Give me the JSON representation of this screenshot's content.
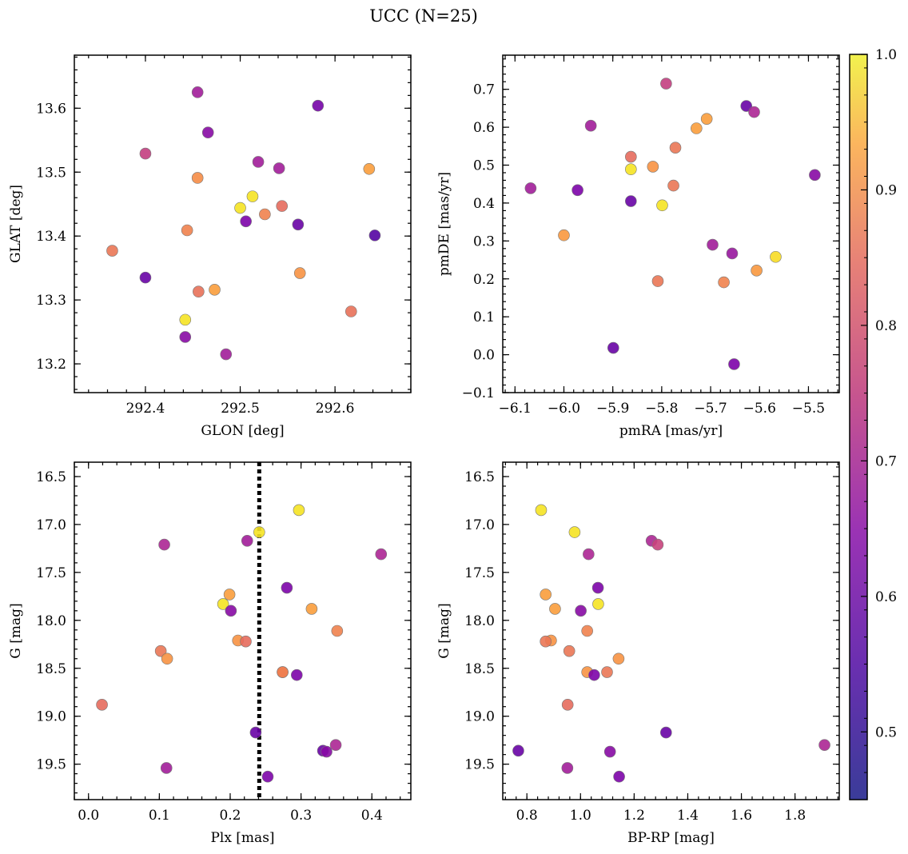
{
  "figure": {
    "title": "UCC (N=25)"
  },
  "chart_data": [
    {
      "type": "scatter",
      "xlabel": "GLON [deg]",
      "ylabel": "GLAT [deg]",
      "xlim": [
        292.325,
        292.68
      ],
      "ylim": [
        13.155,
        13.683
      ],
      "xticks": [
        292.4,
        292.5,
        292.6
      ],
      "xticklabels": [
        "292.4",
        "292.5",
        "292.6"
      ],
      "yticks": [
        13.2,
        13.3,
        13.4,
        13.5,
        13.6
      ],
      "yticklabels": [
        "13.2",
        "13.3",
        "13.4",
        "13.5",
        "13.6"
      ],
      "grid": false,
      "points": [
        {
          "x": 292.455,
          "y": 13.625,
          "c": 0.6
        },
        {
          "x": 292.582,
          "y": 13.604,
          "c": 0.52
        },
        {
          "x": 292.466,
          "y": 13.562,
          "c": 0.55
        },
        {
          "x": 292.4,
          "y": 13.529,
          "c": 0.67
        },
        {
          "x": 292.519,
          "y": 13.516,
          "c": 0.6
        },
        {
          "x": 292.541,
          "y": 13.506,
          "c": 0.6
        },
        {
          "x": 292.636,
          "y": 13.505,
          "c": 0.86
        },
        {
          "x": 292.455,
          "y": 13.491,
          "c": 0.83
        },
        {
          "x": 292.513,
          "y": 13.462,
          "c": 0.97
        },
        {
          "x": 292.5,
          "y": 13.444,
          "c": 0.97
        },
        {
          "x": 292.544,
          "y": 13.447,
          "c": 0.77
        },
        {
          "x": 292.526,
          "y": 13.434,
          "c": 0.81
        },
        {
          "x": 292.506,
          "y": 13.423,
          "c": 0.53
        },
        {
          "x": 292.561,
          "y": 13.418,
          "c": 0.5
        },
        {
          "x": 292.444,
          "y": 13.409,
          "c": 0.81
        },
        {
          "x": 292.642,
          "y": 13.401,
          "c": 0.47
        },
        {
          "x": 292.365,
          "y": 13.377,
          "c": 0.79
        },
        {
          "x": 292.4,
          "y": 13.335,
          "c": 0.5
        },
        {
          "x": 292.563,
          "y": 13.342,
          "c": 0.84
        },
        {
          "x": 292.473,
          "y": 13.316,
          "c": 0.86
        },
        {
          "x": 292.456,
          "y": 13.313,
          "c": 0.78
        },
        {
          "x": 292.617,
          "y": 13.282,
          "c": 0.78
        },
        {
          "x": 292.442,
          "y": 13.269,
          "c": 0.97
        },
        {
          "x": 292.442,
          "y": 13.242,
          "c": 0.55
        },
        {
          "x": 292.485,
          "y": 13.215,
          "c": 0.6
        }
      ]
    },
    {
      "type": "scatter",
      "xlabel": "pmRA [mas/yr]",
      "ylabel": "pmDE [mas/yr]",
      "xlim": [
        -6.125,
        -5.437
      ],
      "ylim": [
        -0.1,
        0.79
      ],
      "xticks": [
        -6.1,
        -6.0,
        -5.9,
        -5.8,
        -5.7,
        -5.6,
        -5.5
      ],
      "xticklabels": [
        "−6.1",
        "−6.0",
        "−5.9",
        "−5.8",
        "−5.7",
        "−5.6",
        "−5.5"
      ],
      "yticks": [
        -0.1,
        0.0,
        0.1,
        0.2,
        0.3,
        0.4,
        0.5,
        0.6,
        0.7
      ],
      "yticklabels": [
        "−0.1",
        "0.0",
        "0.1",
        "0.2",
        "0.3",
        "0.4",
        "0.5",
        "0.6",
        "0.7"
      ],
      "grid": false,
      "points": [
        {
          "x": -5.791,
          "y": 0.715,
          "c": 0.67
        },
        {
          "x": -5.627,
          "y": 0.656,
          "c": 0.5
        },
        {
          "x": -5.611,
          "y": 0.64,
          "c": 0.62
        },
        {
          "x": -5.945,
          "y": 0.604,
          "c": 0.6
        },
        {
          "x": -5.708,
          "y": 0.622,
          "c": 0.86
        },
        {
          "x": -5.729,
          "y": 0.597,
          "c": 0.86
        },
        {
          "x": -5.772,
          "y": 0.546,
          "c": 0.79
        },
        {
          "x": -5.863,
          "y": 0.522,
          "c": 0.77
        },
        {
          "x": -5.818,
          "y": 0.496,
          "c": 0.84
        },
        {
          "x": -5.863,
          "y": 0.489,
          "c": 0.97
        },
        {
          "x": -5.487,
          "y": 0.474,
          "c": 0.55
        },
        {
          "x": -5.776,
          "y": 0.446,
          "c": 0.79
        },
        {
          "x": -6.068,
          "y": 0.439,
          "c": 0.6
        },
        {
          "x": -5.972,
          "y": 0.434,
          "c": 0.53
        },
        {
          "x": -5.863,
          "y": 0.405,
          "c": 0.5
        },
        {
          "x": -5.799,
          "y": 0.394,
          "c": 0.97
        },
        {
          "x": -6.0,
          "y": 0.315,
          "c": 0.85
        },
        {
          "x": -5.696,
          "y": 0.29,
          "c": 0.6
        },
        {
          "x": -5.656,
          "y": 0.267,
          "c": 0.58
        },
        {
          "x": -5.567,
          "y": 0.258,
          "c": 0.96
        },
        {
          "x": -5.606,
          "y": 0.222,
          "c": 0.85
        },
        {
          "x": -5.808,
          "y": 0.194,
          "c": 0.79
        },
        {
          "x": -5.673,
          "y": 0.191,
          "c": 0.81
        },
        {
          "x": -5.899,
          "y": 0.018,
          "c": 0.5
        },
        {
          "x": -5.652,
          "y": -0.025,
          "c": 0.53
        }
      ]
    },
    {
      "type": "scatter",
      "xlabel": "Plx [mas]",
      "ylabel": "G [mag]",
      "xlim": [
        -0.02,
        0.455
      ],
      "ylim": [
        19.87,
        16.35
      ],
      "yinverted": true,
      "xticks": [
        0.0,
        0.1,
        0.2,
        0.3,
        0.4
      ],
      "xticklabels": [
        "0.0",
        "0.1",
        "0.2",
        "0.3",
        "0.4"
      ],
      "yticks": [
        16.5,
        17.0,
        17.5,
        18.0,
        18.5,
        19.0,
        19.5
      ],
      "yticklabels": [
        "16.5",
        "17.0",
        "17.5",
        "18.0",
        "18.5",
        "19.0",
        "19.5"
      ],
      "grid": false,
      "vline": {
        "x": 0.241,
        "style": "dotted",
        "color": "#000000"
      },
      "points": [
        {
          "x": 0.297,
          "y": 16.85,
          "c": 0.97
        },
        {
          "x": 0.241,
          "y": 17.08,
          "c": 0.97
        },
        {
          "x": 0.224,
          "y": 17.17,
          "c": 0.6
        },
        {
          "x": 0.107,
          "y": 17.21,
          "c": 0.62
        },
        {
          "x": 0.413,
          "y": 17.31,
          "c": 0.62
        },
        {
          "x": 0.28,
          "y": 17.66,
          "c": 0.53
        },
        {
          "x": 0.199,
          "y": 17.73,
          "c": 0.86
        },
        {
          "x": 0.19,
          "y": 17.83,
          "c": 0.97
        },
        {
          "x": 0.315,
          "y": 17.88,
          "c": 0.86
        },
        {
          "x": 0.201,
          "y": 17.9,
          "c": 0.55
        },
        {
          "x": 0.351,
          "y": 18.11,
          "c": 0.81
        },
        {
          "x": 0.211,
          "y": 18.21,
          "c": 0.84
        },
        {
          "x": 0.222,
          "y": 18.22,
          "c": 0.77
        },
        {
          "x": 0.102,
          "y": 18.32,
          "c": 0.79
        },
        {
          "x": 0.111,
          "y": 18.4,
          "c": 0.84
        },
        {
          "x": 0.274,
          "y": 18.54,
          "c": 0.84
        },
        {
          "x": 0.274,
          "y": 18.54,
          "c": 0.8
        },
        {
          "x": 0.294,
          "y": 18.57,
          "c": 0.53
        },
        {
          "x": 0.019,
          "y": 18.88,
          "c": 0.77
        },
        {
          "x": 0.236,
          "y": 19.17,
          "c": 0.5
        },
        {
          "x": 0.349,
          "y": 19.3,
          "c": 0.62
        },
        {
          "x": 0.331,
          "y": 19.36,
          "c": 0.5
        },
        {
          "x": 0.336,
          "y": 19.37,
          "c": 0.55
        },
        {
          "x": 0.11,
          "y": 19.54,
          "c": 0.6
        },
        {
          "x": 0.253,
          "y": 19.63,
          "c": 0.53
        }
      ]
    },
    {
      "type": "scatter",
      "xlabel": "BP-RP [mag]",
      "ylabel": "G [mag]",
      "xlim": [
        0.71,
        1.965
      ],
      "ylim": [
        19.87,
        16.35
      ],
      "yinverted": true,
      "xticks": [
        0.8,
        1.0,
        1.2,
        1.4,
        1.6,
        1.8
      ],
      "xticklabels": [
        "0.8",
        "1.0",
        "1.2",
        "1.4",
        "1.6",
        "1.8"
      ],
      "yticks": [
        16.5,
        17.0,
        17.5,
        18.0,
        18.5,
        19.0,
        19.5
      ],
      "yticklabels": [
        "16.5",
        "17.0",
        "17.5",
        "18.0",
        "18.5",
        "19.0",
        "19.5"
      ],
      "grid": false,
      "points": [
        {
          "x": 0.853,
          "y": 16.85,
          "c": 0.97
        },
        {
          "x": 0.978,
          "y": 17.08,
          "c": 0.97
        },
        {
          "x": 1.265,
          "y": 17.17,
          "c": 0.62
        },
        {
          "x": 1.288,
          "y": 17.21,
          "c": 0.68
        },
        {
          "x": 1.03,
          "y": 17.31,
          "c": 0.62
        },
        {
          "x": 1.065,
          "y": 17.66,
          "c": 0.53
        },
        {
          "x": 0.87,
          "y": 17.73,
          "c": 0.86
        },
        {
          "x": 1.066,
          "y": 17.83,
          "c": 0.97
        },
        {
          "x": 0.905,
          "y": 17.88,
          "c": 0.86
        },
        {
          "x": 1.001,
          "y": 17.9,
          "c": 0.55
        },
        {
          "x": 1.025,
          "y": 18.11,
          "c": 0.81
        },
        {
          "x": 0.89,
          "y": 18.21,
          "c": 0.84
        },
        {
          "x": 0.87,
          "y": 18.22,
          "c": 0.79
        },
        {
          "x": 0.958,
          "y": 18.32,
          "c": 0.79
        },
        {
          "x": 1.142,
          "y": 18.4,
          "c": 0.84
        },
        {
          "x": 1.025,
          "y": 18.54,
          "c": 0.84
        },
        {
          "x": 1.099,
          "y": 18.54,
          "c": 0.79
        },
        {
          "x": 1.051,
          "y": 18.57,
          "c": 0.53
        },
        {
          "x": 0.952,
          "y": 18.88,
          "c": 0.77
        },
        {
          "x": 1.319,
          "y": 19.17,
          "c": 0.5
        },
        {
          "x": 1.91,
          "y": 19.3,
          "c": 0.62
        },
        {
          "x": 0.768,
          "y": 19.36,
          "c": 0.5
        },
        {
          "x": 1.11,
          "y": 19.37,
          "c": 0.55
        },
        {
          "x": 0.951,
          "y": 19.54,
          "c": 0.6
        },
        {
          "x": 1.144,
          "y": 19.63,
          "c": 0.53
        }
      ]
    }
  ],
  "colorbar": {
    "cmap": "plasma",
    "vmin": 0.45,
    "vmax": 1.0,
    "ticks": [
      0.5,
      0.6,
      0.7,
      0.8,
      0.9,
      1.0
    ],
    "ticklabels": [
      "0.5",
      "0.6",
      "0.7",
      "0.8",
      "0.9",
      "1.0"
    ]
  }
}
